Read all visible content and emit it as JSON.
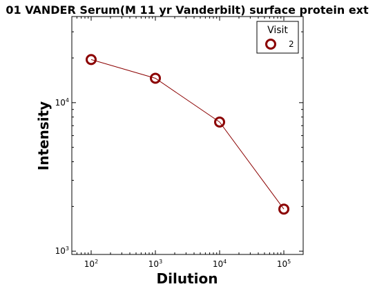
{
  "chart_data": {
    "type": "line",
    "title": "01 VANDER Serum(M 11 yr Vanderbilt) surface protein ext",
    "xlabel": "Dilution",
    "ylabel": "Intensity",
    "xscale": "log",
    "yscale": "log",
    "xlim": [
      50,
      200000
    ],
    "ylim": [
      950,
      38000
    ],
    "x_ticks": [
      {
        "base": "10",
        "exp": "2",
        "value": 100
      },
      {
        "base": "10",
        "exp": "3",
        "value": 1000
      },
      {
        "base": "10",
        "exp": "4",
        "value": 10000
      },
      {
        "base": "10",
        "exp": "5",
        "value": 100000
      }
    ],
    "y_ticks": [
      {
        "base": "10",
        "exp": "3",
        "value": 1000
      },
      {
        "base": "10",
        "exp": "4",
        "value": 10000
      }
    ],
    "legend": {
      "title": "Visit",
      "placement": "top-right"
    },
    "grid": false,
    "series": [
      {
        "name": "2",
        "color": "#8b0000",
        "marker": "open-circle",
        "x": [
          100,
          1000,
          10000,
          100000
        ],
        "y": [
          19500,
          14600,
          7400,
          1920
        ]
      }
    ]
  }
}
